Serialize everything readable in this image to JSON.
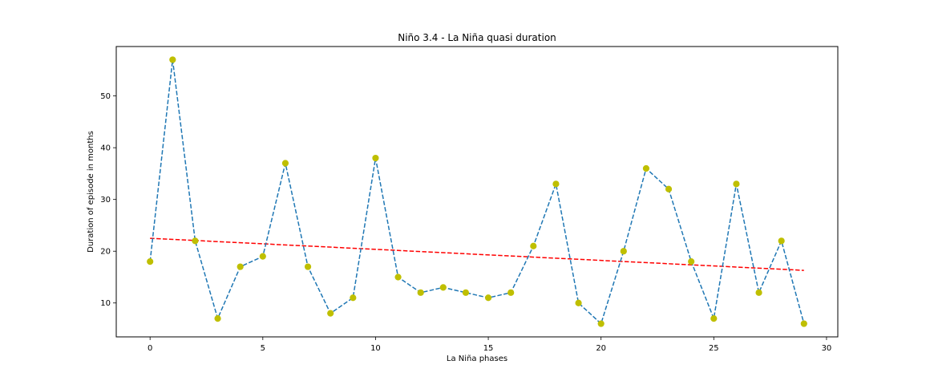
{
  "chart_data": {
    "type": "line",
    "title": "Niño 3.4 - La Niña quasi duration",
    "xlabel": "La Niña phases",
    "ylabel": "Duration of episode in months",
    "xlim": [
      -1.5,
      30.5
    ],
    "ylim": [
      3.45,
      59.55
    ],
    "xticks": [
      0,
      5,
      10,
      15,
      20,
      25,
      30
    ],
    "yticks": [
      10,
      20,
      30,
      40,
      50
    ],
    "grid": false,
    "series": [
      {
        "style": "dashed line with markers",
        "line_color": "#1f77b4",
        "marker_color": "#bfbf00",
        "x": [
          0,
          1,
          2,
          3,
          4,
          5,
          6,
          7,
          8,
          9,
          10,
          11,
          12,
          13,
          14,
          15,
          16,
          17,
          18,
          19,
          20,
          21,
          22,
          23,
          24,
          25,
          26,
          27,
          28,
          29
        ],
        "y": [
          18,
          57,
          22,
          7,
          17,
          19,
          37,
          17,
          8,
          11,
          38,
          15,
          12,
          13,
          12,
          11,
          12,
          21,
          33,
          10,
          6,
          20,
          36,
          32,
          18,
          7,
          33,
          12,
          22,
          6
        ]
      },
      {
        "style": "dashed trend line",
        "line_color": "#ff0000",
        "x": [
          0,
          29
        ],
        "y": [
          22.5,
          16.3
        ]
      }
    ]
  }
}
